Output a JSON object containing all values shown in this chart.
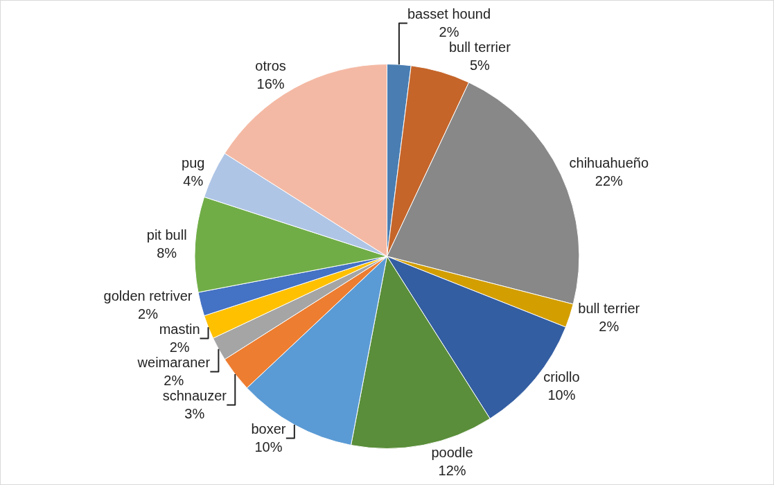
{
  "chart_data": {
    "type": "pie",
    "categories": [
      "basset hound",
      "bull terrier",
      "chihuahueño",
      "bull terrier",
      "criollo",
      "poodle",
      "boxer",
      "schnauzer",
      "weimaraner",
      "mastin",
      "golden retriver",
      "pit bull",
      "pug",
      "otros"
    ],
    "values": [
      2,
      5,
      22,
      2,
      10,
      12,
      10,
      3,
      2,
      2,
      2,
      8,
      4,
      16
    ],
    "value_labels": [
      "2%",
      "5%",
      "22%",
      "2%",
      "10%",
      "12%",
      "10%",
      "3%",
      "2%",
      "2%",
      "2%",
      "8%",
      "4%",
      "16%"
    ],
    "colors": [
      "#4a7eb2",
      "#c5652a",
      "#888888",
      "#d39e00",
      "#345ea2",
      "#5a8e3a",
      "#5b9bd5",
      "#ed7d31",
      "#a5a5a5",
      "#ffc000",
      "#4472c4",
      "#70ad47",
      "#aec5e6",
      "#f4b9a4"
    ],
    "legend": false
  }
}
